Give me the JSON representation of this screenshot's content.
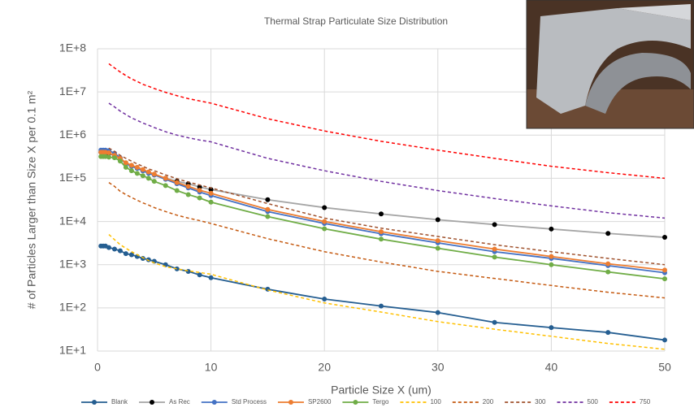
{
  "chart_data": {
    "type": "line",
    "title": "Thermal Strap Particulate Size Distribution",
    "x_label": "Particle Size X  (um)",
    "y_label": "# of Particles Larger than Size X per 0.1 m²",
    "log_y": true,
    "grid": true,
    "legend": "bottom",
    "x": [
      0.3,
      0.5,
      0.7,
      1,
      1.5,
      2,
      2.5,
      3,
      3.5,
      4,
      4.5,
      5,
      6,
      7,
      8,
      9,
      10,
      15,
      20,
      25,
      30,
      35,
      40,
      45,
      50
    ],
    "xlim": [
      0,
      50
    ],
    "xticks": [
      0,
      10,
      20,
      30,
      40,
      50
    ],
    "ylim": [
      10,
      100000000
    ],
    "yticks": [
      {
        "value": 10,
        "label": "1E+1"
      },
      {
        "value": 100,
        "label": "1E+2"
      },
      {
        "value": 1000,
        "label": "1E+3"
      },
      {
        "value": 10000,
        "label": "1E+4"
      },
      {
        "value": 100000,
        "label": "1E+5"
      },
      {
        "value": 1000000,
        "label": "1E+6"
      },
      {
        "value": 10000000,
        "label": "1E+7"
      },
      {
        "value": 100000000,
        "label": "1E+8"
      }
    ],
    "series": [
      {
        "name": "Blank",
        "color": "#255e91",
        "markers": true,
        "dashed": false,
        "values": [
          2700,
          2700,
          2700,
          2500,
          2300,
          2100,
          1800,
          1700,
          1550,
          1400,
          1300,
          1200,
          1000,
          800,
          700,
          580,
          500,
          270,
          160,
          110,
          78,
          46,
          35,
          27,
          18
        ]
      },
      {
        "name": "As Rec",
        "color": "#a5a5a5",
        "marker_color": "#000000",
        "markers": true,
        "dashed": false,
        "values": [
          400000,
          400000,
          400000,
          380000,
          330000,
          280000,
          220000,
          190000,
          170000,
          150000,
          135000,
          120000,
          100000,
          85000,
          75000,
          63000,
          55000,
          32000,
          21000,
          15000,
          11000,
          8500,
          6700,
          5300,
          4300
        ]
      },
      {
        "name": "Std Process",
        "color": "#4472c4",
        "markers": true,
        "dashed": false,
        "values": [
          450000,
          450000,
          450000,
          440000,
          380000,
          300000,
          220000,
          190000,
          170000,
          150000,
          130000,
          120000,
          95000,
          75000,
          60000,
          48000,
          40000,
          17000,
          9000,
          5200,
          3200,
          2000,
          1400,
          950,
          650
        ]
      },
      {
        "name": "SP2600",
        "color": "#ed7d31",
        "markers": true,
        "dashed": false,
        "values": [
          400000,
          400000,
          400000,
          390000,
          340000,
          290000,
          230000,
          200000,
          180000,
          160000,
          140000,
          125000,
          100000,
          80000,
          65000,
          53000,
          45000,
          19000,
          10000,
          5800,
          3600,
          2300,
          1550,
          1050,
          750
        ]
      },
      {
        "name": "Tergo",
        "color": "#70ad47",
        "markers": true,
        "dashed": false,
        "values": [
          320000,
          320000,
          320000,
          310000,
          300000,
          250000,
          180000,
          150000,
          130000,
          115000,
          100000,
          85000,
          68000,
          52000,
          42000,
          35000,
          28000,
          13000,
          6800,
          3900,
          2400,
          1500,
          1000,
          680,
          470
        ]
      },
      {
        "name": "100",
        "color": "#ffc000",
        "markers": false,
        "dashed": true,
        "values": [
          null,
          null,
          null,
          5000,
          3800,
          2900,
          2400,
          2000,
          1700,
          1450,
          1250,
          1100,
          900,
          800,
          720,
          660,
          600,
          260,
          130,
          80,
          48,
          32,
          22,
          15,
          11
        ]
      },
      {
        "name": "200",
        "color": "#c55a11",
        "markers": false,
        "dashed": true,
        "values": [
          null,
          null,
          null,
          80000,
          65000,
          50000,
          42000,
          36000,
          31000,
          27000,
          24000,
          21000,
          17000,
          14000,
          12000,
          10500,
          9000,
          4000,
          2000,
          1150,
          700,
          480,
          330,
          230,
          170
        ]
      },
      {
        "name": "300",
        "color": "#a0522d",
        "markers": false,
        "dashed": true,
        "values": [
          null,
          null,
          null,
          500000,
          420000,
          340000,
          290000,
          250000,
          215000,
          190000,
          165000,
          150000,
          120000,
          98000,
          82000,
          70000,
          60000,
          26000,
          12000,
          7000,
          4500,
          2900,
          2000,
          1400,
          1000
        ]
      },
      {
        "name": "500",
        "color": "#7030a0",
        "markers": false,
        "dashed": true,
        "values": [
          null,
          null,
          null,
          5500000,
          4500000,
          3600000,
          3000000,
          2500000,
          2200000,
          1900000,
          1700000,
          1500000,
          1200000,
          1000000,
          870000,
          770000,
          700000,
          290000,
          150000,
          85000,
          52000,
          34000,
          23000,
          16000,
          12000
        ]
      },
      {
        "name": "750",
        "color": "#ff0000",
        "markers": false,
        "dashed": true,
        "values": [
          null,
          null,
          null,
          45000000,
          36000000,
          29000000,
          24000000,
          20000000,
          17500000,
          15000000,
          13500000,
          12000000,
          9800000,
          8200000,
          7000000,
          6200000,
          5500000,
          2400000,
          1250000,
          720000,
          450000,
          290000,
          190000,
          135000,
          100000
        ]
      }
    ]
  }
}
